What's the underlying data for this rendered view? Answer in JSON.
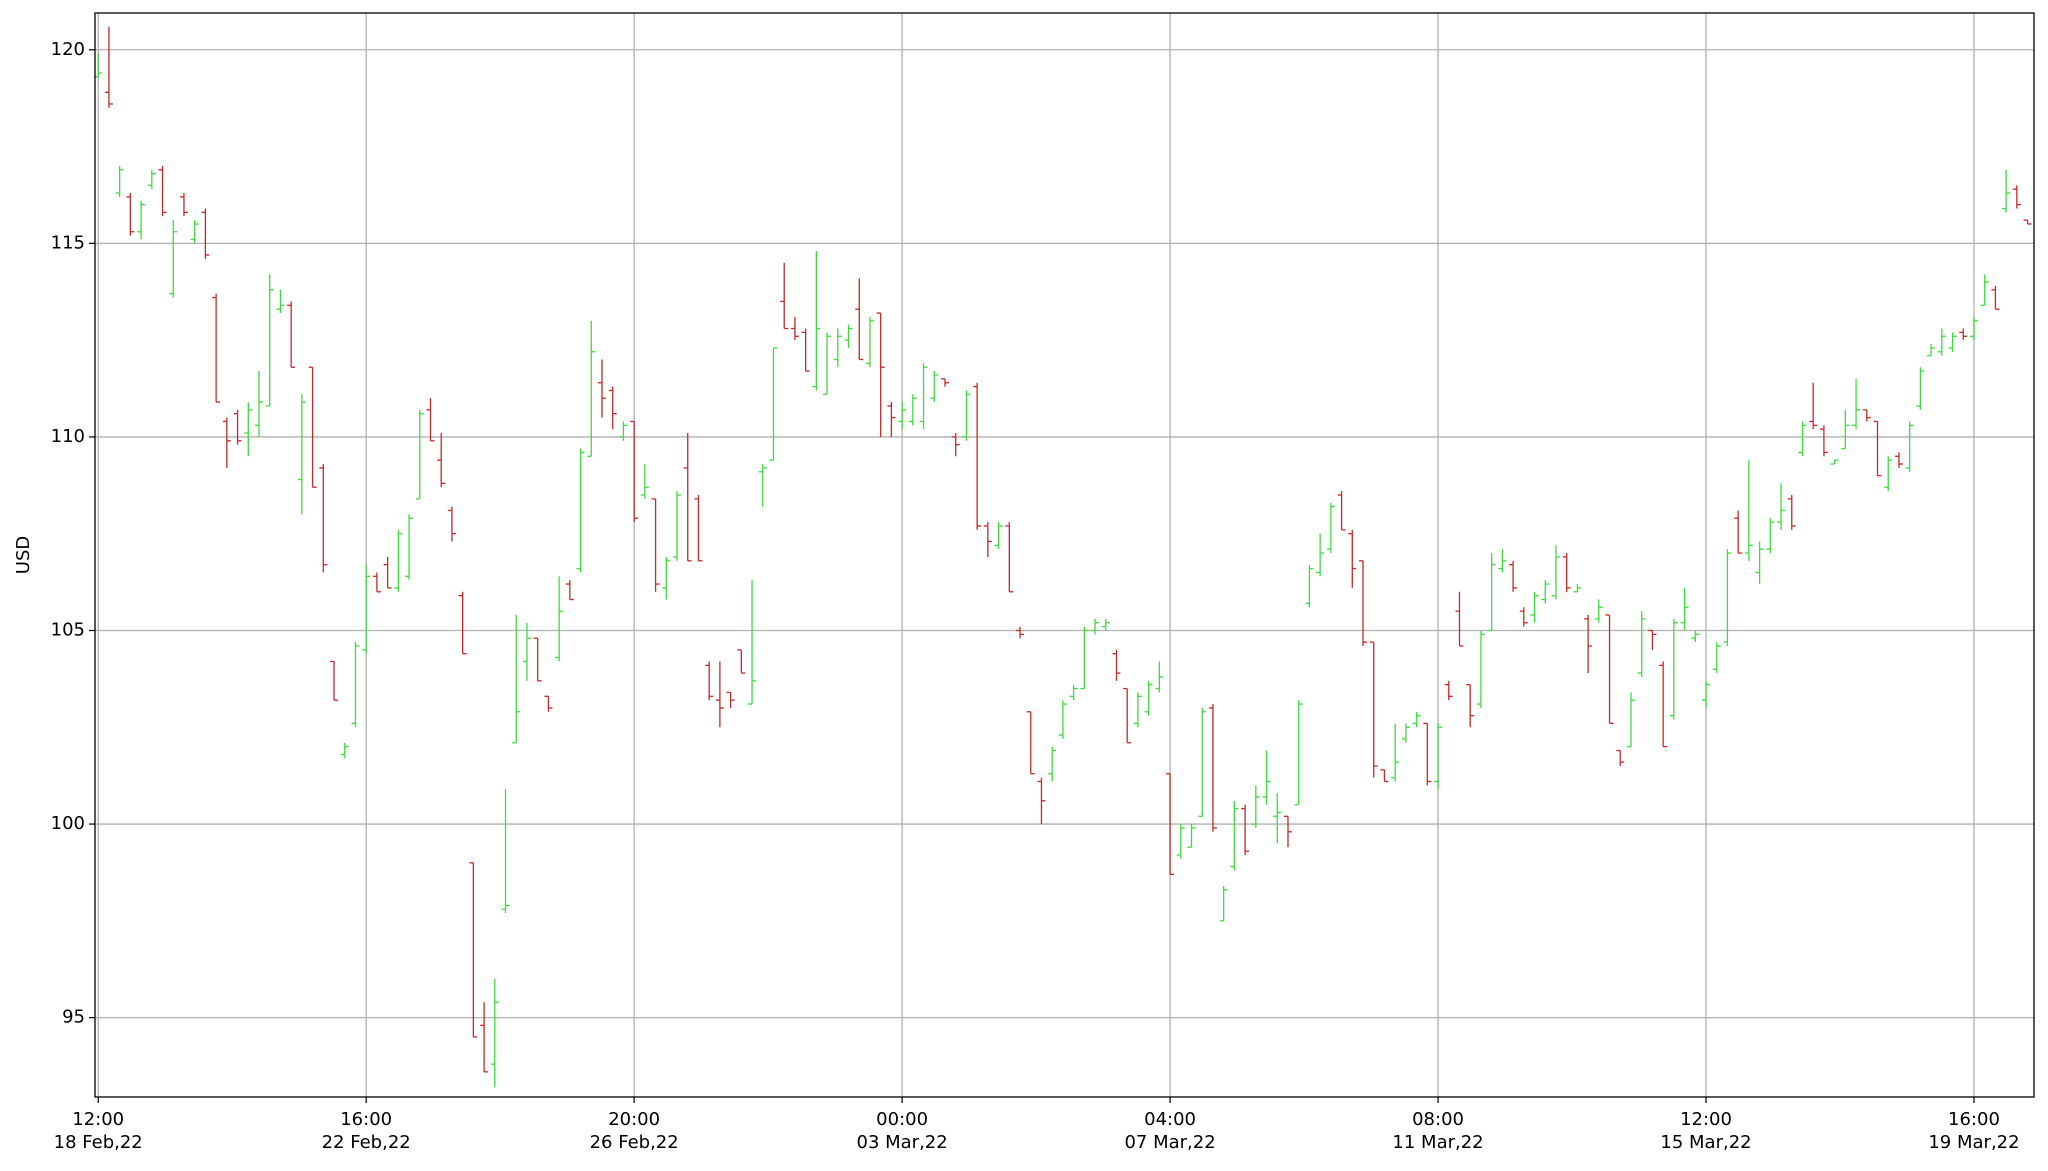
{
  "chart_data": {
    "type": "ohlc",
    "ylabel": "USD",
    "up_color": "#3ddc3d",
    "down_color": "#c62828",
    "grid": true,
    "ylim": [
      92.95,
      120.95
    ],
    "yticks": [
      95,
      100,
      105,
      110,
      115,
      120
    ],
    "xlim": [
      -0.3,
      180.6
    ],
    "categories": [
      "12:00\n18 Feb,22",
      null,
      null,
      null,
      null,
      null,
      null,
      null,
      null,
      null,
      null,
      null,
      null,
      null,
      null,
      null,
      null,
      null,
      null,
      null,
      null,
      null,
      null,
      null,
      null,
      "16:00\n22 Feb,22",
      null,
      null,
      null,
      null,
      null,
      null,
      null,
      null,
      null,
      null,
      null,
      null,
      null,
      null,
      null,
      null,
      null,
      null,
      null,
      null,
      null,
      null,
      null,
      null,
      "20:00\n26 Feb,22",
      null,
      null,
      null,
      null,
      null,
      null,
      null,
      null,
      null,
      null,
      null,
      null,
      null,
      null,
      null,
      null,
      null,
      null,
      null,
      null,
      null,
      null,
      null,
      null,
      "00:00\n03 Mar,22",
      null,
      null,
      null,
      null,
      null,
      null,
      null,
      null,
      null,
      null,
      null,
      null,
      null,
      null,
      null,
      null,
      null,
      null,
      null,
      null,
      null,
      null,
      null,
      null,
      "04:00\n07 Mar,22",
      null,
      null,
      null,
      null,
      null,
      null,
      null,
      null,
      null,
      null,
      null,
      null,
      null,
      null,
      null,
      null,
      null,
      null,
      null,
      null,
      null,
      null,
      null,
      null,
      "08:00\n11 Mar,22",
      null,
      null,
      null,
      null,
      null,
      null,
      null,
      null,
      null,
      null,
      null,
      null,
      null,
      null,
      null,
      null,
      null,
      null,
      null,
      null,
      null,
      null,
      null,
      null,
      "12:00\n15 Mar,22",
      null,
      null,
      null,
      null,
      null,
      null,
      null,
      null,
      null,
      null,
      null,
      null,
      null,
      null,
      null,
      null,
      null,
      null,
      null,
      null,
      null,
      null,
      null,
      null,
      "16:00\n19 Mar,22",
      null,
      null,
      null,
      null,
      null
    ],
    "open": [
      119.3,
      118.9,
      116.3,
      116.2,
      115.3,
      116.5,
      116.9,
      113.7,
      116.2,
      115.1,
      115.8,
      113.6,
      110.4,
      110.6,
      110.1,
      110.3,
      110.8,
      113.3,
      113.4,
      108.9,
      111.8,
      109.2,
      104.2,
      101.8,
      102.6,
      104.5,
      106.4,
      106.7,
      106.1,
      106.4,
      108.4,
      110.7,
      109.4,
      108.1,
      105.9,
      99.0,
      94.8,
      93.8,
      97.8,
      102.1,
      104.2,
      104.8,
      103.3,
      104.3,
      106.2,
      106.6,
      109.5,
      111.4,
      111.2,
      110.0,
      110.4,
      108.5,
      108.4,
      106.1,
      106.9,
      109.2,
      108.4,
      104.1,
      103.2,
      103.4,
      104.5,
      103.1,
      109.1,
      109.4,
      113.5,
      112.8,
      112.7,
      111.3,
      111.1,
      112.0,
      112.5,
      113.3,
      111.9,
      113.2,
      110.8,
      110.4,
      110.4,
      110.4,
      111.0,
      111.5,
      110.0,
      110.0,
      111.3,
      107.7,
      107.2,
      107.7,
      105.0,
      102.9,
      101.1,
      101.3,
      102.3,
      103.3,
      103.5,
      105.0,
      105.1,
      104.4,
      103.5,
      102.6,
      102.9,
      103.5,
      101.3,
      99.2,
      99.4,
      100.2,
      103.0,
      97.5,
      98.9,
      100.4,
      100.0,
      100.7,
      100.2,
      100.2,
      100.5,
      105.7,
      106.5,
      107.1,
      108.5,
      107.5,
      106.8,
      104.7,
      101.4,
      101.2,
      102.2,
      102.6,
      102.6,
      101.1,
      103.6,
      105.5,
      103.6,
      103.1,
      105.0,
      106.6,
      106.7,
      105.5,
      105.4,
      105.8,
      105.9,
      106.9,
      106.0,
      105.3,
      105.3,
      105.4,
      101.9,
      102.0,
      103.9,
      105.0,
      104.1,
      102.8,
      105.2,
      104.8,
      103.2,
      104.0,
      104.7,
      107.9,
      107.0,
      106.5,
      107.1,
      107.8,
      108.4,
      109.6,
      110.4,
      110.2,
      109.3,
      109.7,
      110.3,
      110.7,
      110.4,
      108.7,
      109.5,
      109.2,
      110.8,
      112.1,
      112.2,
      112.3,
      112.7,
      112.6,
      113.4,
      113.8,
      115.9,
      116.4,
      115.6
    ],
    "high": [
      119.9,
      120.6,
      117.0,
      116.3,
      116.1,
      116.9,
      117.0,
      115.6,
      116.3,
      115.6,
      115.9,
      113.7,
      110.5,
      110.7,
      110.9,
      111.7,
      114.2,
      113.8,
      113.5,
      111.1,
      111.8,
      109.3,
      104.2,
      102.1,
      104.7,
      106.7,
      106.5,
      106.9,
      107.6,
      108.0,
      110.7,
      111.0,
      110.1,
      108.2,
      106.0,
      99.0,
      95.4,
      96.0,
      100.9,
      105.4,
      105.2,
      104.8,
      103.3,
      106.4,
      106.3,
      109.7,
      113.0,
      112.0,
      111.3,
      110.4,
      110.4,
      109.3,
      108.4,
      106.9,
      108.6,
      110.1,
      108.5,
      104.2,
      104.2,
      103.4,
      104.5,
      106.3,
      109.3,
      112.3,
      114.5,
      113.1,
      112.8,
      114.8,
      112.7,
      112.8,
      112.9,
      114.1,
      113.1,
      113.2,
      110.9,
      110.9,
      111.1,
      111.9,
      111.7,
      111.5,
      110.1,
      111.2,
      111.4,
      107.8,
      107.8,
      107.8,
      105.1,
      102.9,
      101.2,
      102.0,
      103.2,
      103.6,
      105.1,
      105.3,
      105.3,
      104.5,
      103.5,
      103.4,
      103.7,
      104.2,
      101.3,
      100.0,
      100.0,
      103.0,
      103.1,
      98.4,
      100.6,
      100.5,
      101.0,
      101.9,
      100.8,
      100.2,
      103.2,
      106.7,
      107.5,
      108.3,
      108.6,
      107.6,
      106.8,
      104.7,
      101.4,
      102.6,
      102.6,
      102.9,
      102.6,
      102.6,
      103.7,
      106.0,
      103.6,
      105.0,
      107.0,
      107.1,
      106.8,
      105.6,
      106.0,
      106.3,
      107.2,
      107.0,
      106.2,
      105.4,
      105.8,
      105.4,
      101.9,
      103.4,
      105.5,
      105.0,
      104.2,
      105.3,
      106.1,
      105.0,
      103.7,
      104.7,
      107.1,
      108.1,
      109.4,
      107.3,
      107.9,
      108.8,
      108.5,
      110.4,
      111.4,
      110.3,
      109.4,
      110.7,
      111.5,
      110.7,
      110.4,
      109.5,
      109.6,
      110.4,
      111.8,
      112.4,
      112.8,
      112.7,
      112.8,
      113.1,
      114.2,
      113.9,
      116.9,
      116.5,
      115.6
    ],
    "low": [
      119.3,
      118.5,
      116.2,
      115.2,
      115.1,
      116.4,
      115.7,
      113.6,
      115.7,
      115.0,
      114.6,
      110.9,
      109.2,
      109.8,
      109.5,
      110.0,
      110.8,
      113.2,
      111.8,
      108.0,
      108.7,
      106.5,
      103.2,
      101.7,
      102.5,
      104.4,
      106.0,
      106.1,
      106.0,
      106.3,
      108.4,
      109.9,
      108.7,
      107.3,
      104.4,
      94.5,
      93.6,
      93.2,
      97.7,
      102.1,
      103.7,
      103.7,
      102.9,
      104.2,
      105.8,
      106.5,
      109.5,
      110.5,
      110.2,
      109.9,
      107.8,
      108.4,
      106.0,
      105.8,
      106.8,
      106.8,
      106.8,
      103.2,
      102.5,
      103.0,
      103.9,
      103.1,
      108.2,
      109.4,
      112.8,
      112.5,
      111.7,
      111.2,
      111.1,
      111.8,
      112.3,
      112.0,
      111.8,
      110.0,
      110.0,
      110.2,
      110.3,
      110.2,
      110.9,
      111.3,
      109.5,
      109.9,
      107.6,
      106.9,
      107.1,
      106.0,
      104.8,
      101.3,
      100.0,
      101.1,
      102.2,
      103.2,
      103.5,
      104.9,
      105.0,
      103.7,
      102.1,
      102.5,
      102.8,
      103.4,
      98.7,
      99.1,
      99.4,
      100.2,
      99.8,
      97.5,
      98.8,
      99.2,
      99.9,
      100.5,
      99.5,
      99.4,
      100.5,
      105.6,
      106.4,
      107.0,
      107.6,
      106.1,
      104.6,
      101.2,
      101.1,
      101.1,
      102.1,
      102.5,
      101.0,
      100.9,
      103.2,
      104.6,
      102.5,
      103.0,
      105.0,
      106.5,
      106.0,
      105.1,
      105.2,
      105.7,
      105.8,
      106.0,
      106.0,
      103.9,
      105.2,
      102.6,
      101.5,
      102.0,
      103.8,
      104.5,
      102.0,
      102.7,
      105.0,
      104.7,
      103.0,
      103.9,
      104.6,
      107.0,
      106.8,
      106.2,
      107.0,
      107.6,
      107.6,
      109.5,
      110.2,
      109.5,
      109.3,
      109.7,
      110.2,
      110.4,
      109.0,
      108.6,
      109.2,
      109.1,
      110.7,
      112.1,
      112.1,
      112.2,
      112.5,
      112.5,
      113.4,
      113.3,
      115.8,
      115.9,
      115.5
    ],
    "close": [
      119.4,
      118.6,
      116.9,
      115.3,
      116.0,
      116.8,
      115.8,
      115.3,
      115.8,
      115.5,
      114.7,
      110.9,
      109.9,
      109.9,
      110.7,
      110.9,
      113.8,
      113.4,
      111.8,
      110.9,
      108.7,
      106.7,
      103.2,
      102.0,
      104.6,
      106.4,
      106.0,
      106.1,
      107.5,
      107.9,
      110.6,
      109.9,
      108.8,
      107.5,
      104.4,
      94.5,
      93.6,
      95.4,
      97.9,
      102.9,
      104.8,
      103.7,
      103.0,
      105.5,
      105.8,
      109.6,
      112.2,
      111.0,
      110.6,
      110.3,
      107.9,
      108.7,
      106.2,
      106.8,
      108.5,
      106.8,
      106.8,
      103.3,
      103.0,
      103.2,
      103.9,
      103.7,
      109.2,
      112.3,
      112.8,
      112.6,
      111.7,
      112.8,
      112.6,
      112.6,
      112.8,
      112.0,
      113.0,
      111.8,
      110.5,
      110.7,
      111.0,
      111.8,
      111.6,
      111.4,
      109.8,
      111.1,
      107.7,
      107.3,
      107.7,
      106.0,
      104.9,
      101.3,
      100.6,
      101.9,
      103.1,
      103.5,
      105.0,
      105.2,
      105.2,
      103.9,
      102.1,
      103.3,
      103.6,
      103.8,
      98.7,
      99.9,
      99.9,
      102.9,
      99.9,
      98.3,
      100.4,
      99.3,
      100.7,
      101.1,
      100.3,
      99.8,
      103.1,
      106.6,
      107.0,
      108.2,
      107.6,
      106.6,
      104.7,
      101.5,
      101.1,
      101.6,
      102.5,
      102.8,
      101.1,
      102.5,
      103.3,
      104.6,
      102.8,
      104.9,
      106.7,
      106.8,
      106.1,
      105.2,
      105.9,
      106.2,
      106.9,
      106.1,
      106.1,
      104.6,
      105.6,
      102.6,
      101.6,
      103.2,
      105.3,
      104.9,
      102.0,
      105.2,
      105.6,
      104.9,
      103.6,
      104.6,
      107.0,
      107.0,
      107.2,
      107.1,
      107.8,
      108.1,
      107.7,
      110.3,
      110.3,
      109.6,
      109.4,
      110.3,
      110.7,
      110.5,
      109.0,
      109.4,
      109.3,
      110.3,
      111.7,
      112.3,
      112.6,
      112.6,
      112.6,
      113.0,
      114.0,
      113.3,
      116.3,
      116.0,
      115.5
    ]
  }
}
